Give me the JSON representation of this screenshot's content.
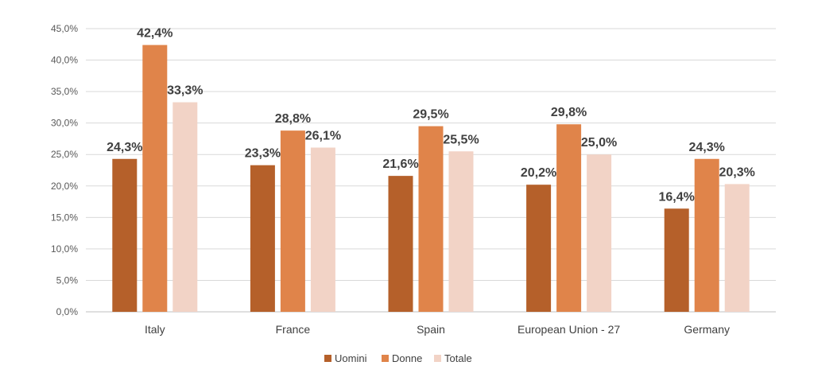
{
  "chart_data": {
    "type": "bar",
    "title": "",
    "xlabel": "",
    "ylabel": "",
    "categories": [
      "Italy",
      "France",
      "Spain",
      "European Union - 27",
      "Germany"
    ],
    "series": [
      {
        "name": "Uomini",
        "color": "#b5602a",
        "values": [
          24.3,
          23.3,
          21.6,
          20.2,
          16.4
        ],
        "labels": [
          "24,3%",
          "23,3%",
          "21,6%",
          "20,2%",
          "16,4%"
        ]
      },
      {
        "name": "Donne",
        "color": "#e0844a",
        "values": [
          42.4,
          28.8,
          29.5,
          29.8,
          24.3
        ],
        "labels": [
          "42,4%",
          "28,8%",
          "29,5%",
          "29,8%",
          "24,3%"
        ]
      },
      {
        "name": "Totale",
        "color": "#f2d3c6",
        "values": [
          33.3,
          26.1,
          25.5,
          25.0,
          20.3
        ],
        "labels": [
          "33,3%",
          "26,1%",
          "25,5%",
          "25,0%",
          "20,3%"
        ]
      }
    ],
    "ylim": [
      0,
      45
    ],
    "yticks": [
      0,
      5,
      10,
      15,
      20,
      25,
      30,
      35,
      40,
      45
    ],
    "ytick_labels": [
      "0,0%",
      "5,0%",
      "10,0%",
      "15,0%",
      "20,0%",
      "25,0%",
      "30,0%",
      "35,0%",
      "40,0%",
      "45,0%"
    ],
    "grid": true,
    "legend": "bottom"
  }
}
